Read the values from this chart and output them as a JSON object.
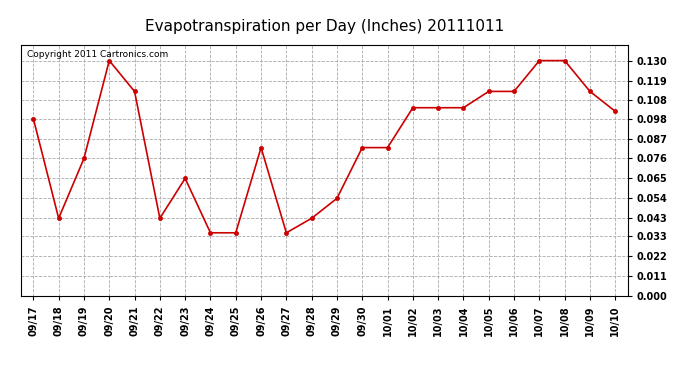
{
  "title": "Evapotranspiration per Day (Inches) 20111011",
  "copyright_text": "Copyright 2011 Cartronics.com",
  "x_labels": [
    "09/17",
    "09/18",
    "09/19",
    "09/20",
    "09/21",
    "09/22",
    "09/23",
    "09/24",
    "09/25",
    "09/26",
    "09/27",
    "09/28",
    "09/29",
    "09/30",
    "10/01",
    "10/02",
    "10/03",
    "10/04",
    "10/05",
    "10/06",
    "10/07",
    "10/08",
    "10/09",
    "10/10"
  ],
  "y_values": [
    0.098,
    0.043,
    0.076,
    0.13,
    0.113,
    0.043,
    0.065,
    0.035,
    0.035,
    0.082,
    0.035,
    0.043,
    0.054,
    0.082,
    0.082,
    0.104,
    0.104,
    0.104,
    0.113,
    0.113,
    0.13,
    0.13,
    0.113,
    0.102
  ],
  "y_ticks": [
    0.0,
    0.011,
    0.022,
    0.033,
    0.043,
    0.054,
    0.065,
    0.076,
    0.087,
    0.098,
    0.108,
    0.119,
    0.13
  ],
  "y_tick_labels": [
    "0.000",
    "0.011",
    "0.022",
    "0.033",
    "0.043",
    "0.054",
    "0.065",
    "0.076",
    "0.087",
    "0.098",
    "0.108",
    "0.119",
    "0.130"
  ],
  "ylim": [
    0.0,
    0.1386
  ],
  "line_color": "#cc0000",
  "marker": "o",
  "marker_size": 3,
  "bg_color": "#ffffff",
  "grid_color": "#aaaaaa",
  "title_fontsize": 11,
  "tick_fontsize": 7,
  "copyright_fontsize": 6.5
}
